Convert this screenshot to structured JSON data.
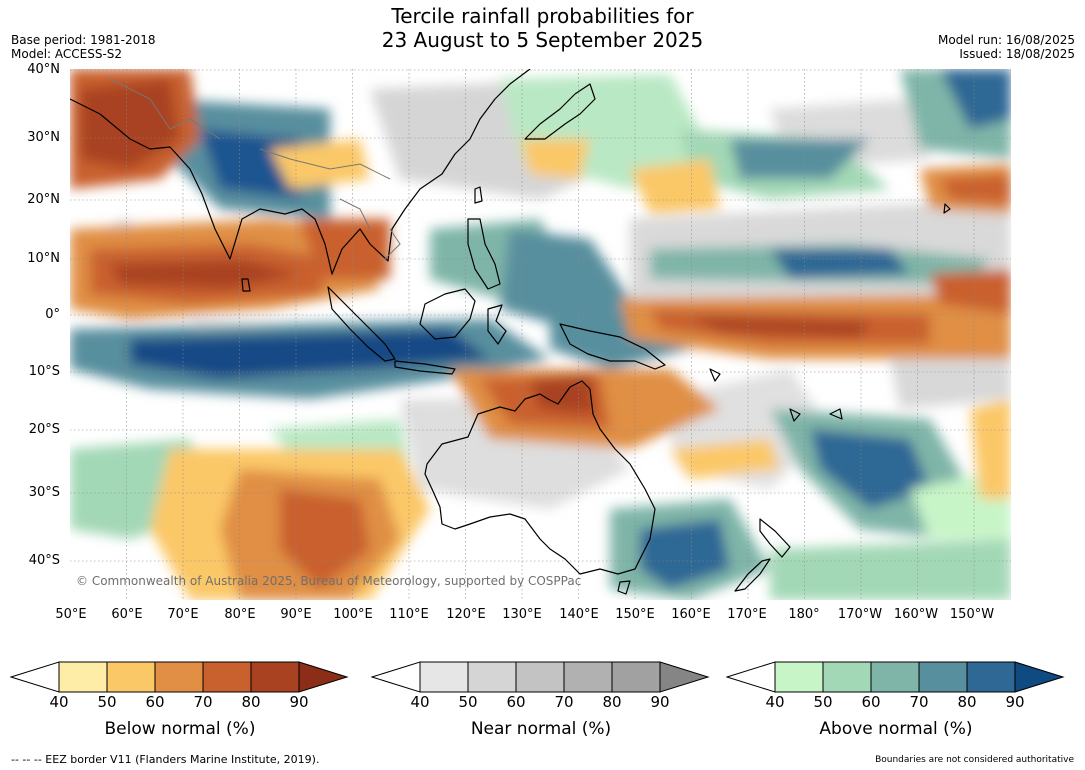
{
  "title_line1": "Tercile rainfall probabilities for",
  "title_line2": "23 August to 5 September 2025",
  "base_period": "Base period: 1981-2018",
  "model": "Model: ACCESS-S2",
  "model_run": "Model run: 16/08/2025",
  "issued": "Issued: 18/08/2025",
  "lat_labels": [
    "40°N",
    "30°N",
    "20°N",
    "10°N",
    "0°",
    "10°S",
    "20°S",
    "30°S",
    "40°S"
  ],
  "lon_labels": [
    "50°E",
    "60°E",
    "70°E",
    "80°E",
    "90°E",
    "100°E",
    "110°E",
    "120°E",
    "130°E",
    "140°E",
    "150°E",
    "160°E",
    "170°E",
    "180°",
    "170°W",
    "160°W",
    "150°W"
  ],
  "copyright": "© Commonwealth of Australia 2025, Bureau of Meteorology, supported by COSPPac",
  "colorbars": [
    {
      "label": "Below normal (%)",
      "ticks": [
        "40",
        "50",
        "60",
        "70",
        "80",
        "90"
      ],
      "colors": [
        "#fdeda6",
        "#fbc867",
        "#e08f45",
        "#c9612e",
        "#a94221"
      ],
      "extend_color": "#8b2d17"
    },
    {
      "label": "Near normal (%)",
      "ticks": [
        "40",
        "50",
        "60",
        "70",
        "80",
        "90"
      ],
      "colors": [
        "#e6e6e6",
        "#d5d5d5",
        "#c3c3c3",
        "#b1b1b1",
        "#a1a1a1"
      ],
      "extend_color": "#858585"
    },
    {
      "label": "Above normal (%)",
      "ticks": [
        "40",
        "50",
        "60",
        "70",
        "80",
        "90"
      ],
      "colors": [
        "#c8f5c8",
        "#a3d8b6",
        "#7fb5a8",
        "#588f9e",
        "#2f6795"
      ],
      "extend_color": "#0f4a80"
    }
  ],
  "footer_left": "--  --  -- EEZ border V11 (Flanders Marine Institute, 2019).",
  "footer_right": "Boundaries are not considered authoritative"
}
